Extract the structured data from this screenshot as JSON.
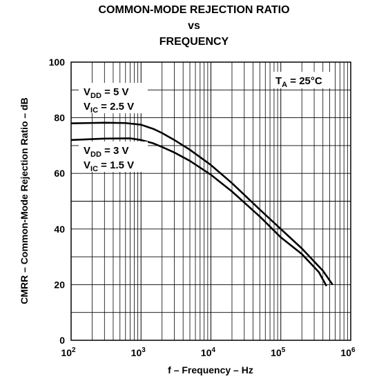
{
  "chart_data": {
    "type": "line",
    "title": [
      "COMMON-MODE REJECTION RATIO",
      "vs",
      "FREQUENCY"
    ],
    "xlabel": "f – Frequency – Hz",
    "ylabel": "CMRR – Common-Mode Rejection Ratio – dB",
    "xscale": "log",
    "xlim": [
      100,
      1000000
    ],
    "ylim": [
      0,
      100
    ],
    "yticks": [
      0,
      20,
      40,
      60,
      80,
      100
    ],
    "xticks": [
      {
        "base": "10",
        "exp": "2"
      },
      {
        "base": "10",
        "exp": "3"
      },
      {
        "base": "10",
        "exp": "4"
      },
      {
        "base": "10",
        "exp": "5"
      },
      {
        "base": "10",
        "exp": "6"
      }
    ],
    "grid": true,
    "annotations": {
      "temp": {
        "main": "T",
        "sub": "A",
        "rest": " = 25°C"
      },
      "upper": [
        {
          "main": "V",
          "sub": "DD",
          "rest": " = 5 V"
        },
        {
          "main": "V",
          "sub": "IC",
          "rest": " = 2.5 V"
        }
      ],
      "lower": [
        {
          "main": "V",
          "sub": "DD",
          "rest": " = 3 V"
        },
        {
          "main": "V",
          "sub": "IC",
          "rest": " = 1.5 V"
        }
      ]
    },
    "series": [
      {
        "points": [
          [
            100,
            78
          ],
          [
            300,
            78.2
          ],
          [
            600,
            78.1
          ],
          [
            1000,
            77.5
          ],
          [
            1500,
            76
          ],
          [
            2000,
            74.5
          ],
          [
            3000,
            72
          ],
          [
            5000,
            68.5
          ],
          [
            10000,
            63
          ],
          [
            20000,
            56.5
          ],
          [
            50000,
            47
          ],
          [
            100000,
            40
          ],
          [
            200000,
            33
          ],
          [
            400000,
            25
          ],
          [
            550000,
            20
          ]
        ]
      },
      {
        "points": [
          [
            100,
            72
          ],
          [
            300,
            72.5
          ],
          [
            700,
            72.6
          ],
          [
            1000,
            72
          ],
          [
            1500,
            70.8
          ],
          [
            2000,
            69.5
          ],
          [
            3000,
            67.5
          ],
          [
            5000,
            64.5
          ],
          [
            10000,
            59.5
          ],
          [
            20000,
            53.5
          ],
          [
            50000,
            44.5
          ],
          [
            100000,
            37
          ],
          [
            200000,
            31
          ],
          [
            350000,
            24.5
          ],
          [
            450000,
            19.5
          ]
        ]
      }
    ]
  }
}
